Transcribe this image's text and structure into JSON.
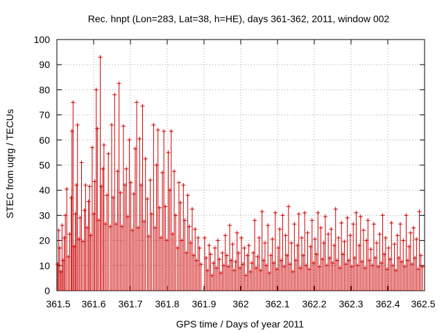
{
  "chart_data": {
    "type": "scatter",
    "title": "Rec. hnpt (Lon=283, Lat=38, h=HE), days 361-362, 2011, window 002",
    "xlabel": "GPS time / Days of year 2011",
    "ylabel": "STEC from uqrg / TECUs",
    "xlim": [
      361.5,
      362.5
    ],
    "ylim": [
      0,
      100
    ],
    "xticks": [
      361.5,
      361.6,
      361.7,
      361.8,
      361.9,
      362,
      362.1,
      362.2,
      362.3,
      362.4,
      362.5
    ],
    "xtick_labels": [
      "361.5",
      "361.6",
      "361.7",
      "361.8",
      "361.9",
      "362",
      "362.1",
      "362.2",
      "362.3",
      "362.4",
      "362.5"
    ],
    "yticks": [
      0,
      10,
      20,
      30,
      40,
      50,
      60,
      70,
      80,
      90,
      100
    ],
    "ytick_labels": [
      "0",
      "10",
      "20",
      "30",
      "40",
      "50",
      "60",
      "70",
      "80",
      "90",
      "100"
    ],
    "grid": true,
    "series": [
      {
        "name": "STEC",
        "color": "#cc0000",
        "marker": "impulse-plus",
        "points": [
          {
            "x": 361.502,
            "y": 10.5
          },
          {
            "x": 361.505,
            "y": 24.0
          },
          {
            "x": 361.508,
            "y": 17.0
          },
          {
            "x": 361.511,
            "y": 7.5
          },
          {
            "x": 361.514,
            "y": 26.0
          },
          {
            "x": 361.517,
            "y": 12.0
          },
          {
            "x": 361.52,
            "y": 21.0
          },
          {
            "x": 361.523,
            "y": 30.0
          },
          {
            "x": 361.527,
            "y": 40.5
          },
          {
            "x": 361.531,
            "y": 13.5
          },
          {
            "x": 361.535,
            "y": 22.5
          },
          {
            "x": 361.539,
            "y": 37.0
          },
          {
            "x": 361.541,
            "y": 63.5
          },
          {
            "x": 361.544,
            "y": 75.0
          },
          {
            "x": 361.547,
            "y": 17.5
          },
          {
            "x": 361.55,
            "y": 30.5
          },
          {
            "x": 361.553,
            "y": 42.0
          },
          {
            "x": 361.556,
            "y": 66.0
          },
          {
            "x": 361.56,
            "y": 20.5
          },
          {
            "x": 361.563,
            "y": 29.0
          },
          {
            "x": 361.567,
            "y": 51.0
          },
          {
            "x": 361.571,
            "y": 19.5
          },
          {
            "x": 361.575,
            "y": 32.0
          },
          {
            "x": 361.578,
            "y": 42.0
          },
          {
            "x": 361.582,
            "y": 25.0
          },
          {
            "x": 361.586,
            "y": 35.5
          },
          {
            "x": 361.589,
            "y": 41.5
          },
          {
            "x": 361.592,
            "y": 22.0
          },
          {
            "x": 361.596,
            "y": 57.0
          },
          {
            "x": 361.6,
            "y": 30.5
          },
          {
            "x": 361.603,
            "y": 43.5
          },
          {
            "x": 361.607,
            "y": 80.0
          },
          {
            "x": 361.61,
            "y": 64.5
          },
          {
            "x": 361.614,
            "y": 28.0
          },
          {
            "x": 361.618,
            "y": 93.0
          },
          {
            "x": 361.621,
            "y": 41.5
          },
          {
            "x": 361.625,
            "y": 48.5
          },
          {
            "x": 361.628,
            "y": 58.0
          },
          {
            "x": 361.632,
            "y": 26.5
          },
          {
            "x": 361.636,
            "y": 38.0
          },
          {
            "x": 361.64,
            "y": 54.5
          },
          {
            "x": 361.645,
            "y": 25.5
          },
          {
            "x": 361.649,
            "y": 66.0
          },
          {
            "x": 361.653,
            "y": 37.0
          },
          {
            "x": 361.657,
            "y": 78.0
          },
          {
            "x": 361.661,
            "y": 26.5
          },
          {
            "x": 361.665,
            "y": 47.5
          },
          {
            "x": 361.669,
            "y": 82.5
          },
          {
            "x": 361.673,
            "y": 39.0
          },
          {
            "x": 361.677,
            "y": 25.5
          },
          {
            "x": 361.681,
            "y": 65.5
          },
          {
            "x": 361.685,
            "y": 42.0
          },
          {
            "x": 361.689,
            "y": 48.5
          },
          {
            "x": 361.693,
            "y": 29.5
          },
          {
            "x": 361.697,
            "y": 60.0
          },
          {
            "x": 361.701,
            "y": 43.0
          },
          {
            "x": 361.705,
            "y": 24.0
          },
          {
            "x": 361.709,
            "y": 38.5
          },
          {
            "x": 361.713,
            "y": 56.5
          },
          {
            "x": 361.717,
            "y": 75.0
          },
          {
            "x": 361.721,
            "y": 25.0
          },
          {
            "x": 361.725,
            "y": 60.5
          },
          {
            "x": 361.729,
            "y": 42.0
          },
          {
            "x": 361.733,
            "y": 73.5
          },
          {
            "x": 361.737,
            "y": 27.5
          },
          {
            "x": 361.741,
            "y": 52.5
          },
          {
            "x": 361.746,
            "y": 36.5
          },
          {
            "x": 361.75,
            "y": 21.5
          },
          {
            "x": 361.754,
            "y": 44.0
          },
          {
            "x": 361.758,
            "y": 30.5
          },
          {
            "x": 361.763,
            "y": 66.0
          },
          {
            "x": 361.767,
            "y": 25.0
          },
          {
            "x": 361.771,
            "y": 50.0
          },
          {
            "x": 361.775,
            "y": 64.0
          },
          {
            "x": 361.779,
            "y": 33.0
          },
          {
            "x": 361.783,
            "y": 21.0
          },
          {
            "x": 361.787,
            "y": 47.0
          },
          {
            "x": 361.791,
            "y": 63.5
          },
          {
            "x": 361.795,
            "y": 33.5
          },
          {
            "x": 361.799,
            "y": 20.0
          },
          {
            "x": 361.803,
            "y": 55.0
          },
          {
            "x": 361.807,
            "y": 40.0
          },
          {
            "x": 361.811,
            "y": 63.5
          },
          {
            "x": 361.815,
            "y": 22.5
          },
          {
            "x": 361.819,
            "y": 47.5
          },
          {
            "x": 361.823,
            "y": 30.0
          },
          {
            "x": 361.828,
            "y": 17.0
          },
          {
            "x": 361.832,
            "y": 43.0
          },
          {
            "x": 361.836,
            "y": 35.0
          },
          {
            "x": 361.84,
            "y": 20.0
          },
          {
            "x": 361.844,
            "y": 42.0
          },
          {
            "x": 361.848,
            "y": 28.0
          },
          {
            "x": 361.852,
            "y": 15.0
          },
          {
            "x": 361.856,
            "y": 38.0
          },
          {
            "x": 361.86,
            "y": 25.5
          },
          {
            "x": 361.864,
            "y": 19.0
          },
          {
            "x": 361.868,
            "y": 32.5
          },
          {
            "x": 361.872,
            "y": 14.0
          },
          {
            "x": 361.876,
            "y": 24.5
          },
          {
            "x": 361.88,
            "y": 12.0
          },
          {
            "x": 361.884,
            "y": 21.0
          },
          {
            "x": 361.888,
            "y": 17.0
          },
          {
            "x": 361.892,
            "y": 10.5
          },
          {
            "x": 361.902,
            "y": 21.0
          },
          {
            "x": 361.906,
            "y": 13.0
          },
          {
            "x": 361.91,
            "y": 8.0
          },
          {
            "x": 361.914,
            "y": 18.0
          },
          {
            "x": 361.918,
            "y": 14.5
          },
          {
            "x": 361.922,
            "y": 6.0
          },
          {
            "x": 361.926,
            "y": 11.0
          },
          {
            "x": 361.93,
            "y": 17.0
          },
          {
            "x": 361.934,
            "y": 9.0
          },
          {
            "x": 361.938,
            "y": 20.0
          },
          {
            "x": 361.942,
            "y": 12.5
          },
          {
            "x": 361.946,
            "y": 7.0
          },
          {
            "x": 361.95,
            "y": 15.0
          },
          {
            "x": 361.954,
            "y": 10.0
          },
          {
            "x": 361.958,
            "y": 22.0
          },
          {
            "x": 361.962,
            "y": 14.0
          },
          {
            "x": 361.966,
            "y": 9.5
          },
          {
            "x": 361.97,
            "y": 26.0
          },
          {
            "x": 361.974,
            "y": 12.0
          },
          {
            "x": 361.978,
            "y": 18.5
          },
          {
            "x": 361.982,
            "y": 8.0
          },
          {
            "x": 361.986,
            "y": 11.5
          },
          {
            "x": 361.99,
            "y": 23.0
          },
          {
            "x": 361.994,
            "y": 15.0
          },
          {
            "x": 361.998,
            "y": 9.0
          },
          {
            "x": 362.002,
            "y": 21.0
          },
          {
            "x": 362.006,
            "y": 10.5
          },
          {
            "x": 362.01,
            "y": 17.0
          },
          {
            "x": 362.014,
            "y": 6.0
          },
          {
            "x": 362.018,
            "y": 14.0
          },
          {
            "x": 362.022,
            "y": 18.0
          },
          {
            "x": 362.026,
            "y": 7.5
          },
          {
            "x": 362.03,
            "y": 11.0
          },
          {
            "x": 362.034,
            "y": 15.0
          },
          {
            "x": 362.038,
            "y": 28.0
          },
          {
            "x": 362.042,
            "y": 9.0
          },
          {
            "x": 362.046,
            "y": 13.5
          },
          {
            "x": 362.05,
            "y": 21.0
          },
          {
            "x": 362.054,
            "y": 8.0
          },
          {
            "x": 362.058,
            "y": 31.5
          },
          {
            "x": 362.062,
            "y": 12.0
          },
          {
            "x": 362.066,
            "y": 19.0
          },
          {
            "x": 362.07,
            "y": 10.0
          },
          {
            "x": 362.074,
            "y": 26.0
          },
          {
            "x": 362.078,
            "y": 7.0
          },
          {
            "x": 362.082,
            "y": 14.0
          },
          {
            "x": 362.086,
            "y": 20.5
          },
          {
            "x": 362.09,
            "y": 11.0
          },
          {
            "x": 362.094,
            "y": 31.0
          },
          {
            "x": 362.098,
            "y": 8.5
          },
          {
            "x": 362.102,
            "y": 17.0
          },
          {
            "x": 362.106,
            "y": 24.5
          },
          {
            "x": 362.11,
            "y": 12.0
          },
          {
            "x": 362.114,
            "y": 30.0
          },
          {
            "x": 362.118,
            "y": 9.5
          },
          {
            "x": 362.122,
            "y": 22.0
          },
          {
            "x": 362.126,
            "y": 14.0
          },
          {
            "x": 362.13,
            "y": 33.5
          },
          {
            "x": 362.134,
            "y": 10.5
          },
          {
            "x": 362.138,
            "y": 19.0
          },
          {
            "x": 362.142,
            "y": 7.5
          },
          {
            "x": 362.146,
            "y": 26.5
          },
          {
            "x": 362.15,
            "y": 12.0
          },
          {
            "x": 362.154,
            "y": 18.0
          },
          {
            "x": 362.158,
            "y": 30.5
          },
          {
            "x": 362.162,
            "y": 9.0
          },
          {
            "x": 362.166,
            "y": 21.0
          },
          {
            "x": 362.17,
            "y": 14.0
          },
          {
            "x": 362.174,
            "y": 31.0
          },
          {
            "x": 362.178,
            "y": 10.0
          },
          {
            "x": 362.182,
            "y": 23.0
          },
          {
            "x": 362.186,
            "y": 8.5
          },
          {
            "x": 362.19,
            "y": 17.5
          },
          {
            "x": 362.194,
            "y": 28.0
          },
          {
            "x": 362.198,
            "y": 11.0
          },
          {
            "x": 362.202,
            "y": 20.5
          },
          {
            "x": 362.206,
            "y": 14.5
          },
          {
            "x": 362.21,
            "y": 31.0
          },
          {
            "x": 362.214,
            "y": 9.5
          },
          {
            "x": 362.218,
            "y": 25.0
          },
          {
            "x": 362.222,
            "y": 12.5
          },
          {
            "x": 362.226,
            "y": 19.0
          },
          {
            "x": 362.23,
            "y": 29.5
          },
          {
            "x": 362.234,
            "y": 10.0
          },
          {
            "x": 362.238,
            "y": 22.5
          },
          {
            "x": 362.242,
            "y": 13.0
          },
          {
            "x": 362.246,
            "y": 24.5
          },
          {
            "x": 362.25,
            "y": 11.0
          },
          {
            "x": 362.254,
            "y": 18.0
          },
          {
            "x": 362.258,
            "y": 32.5
          },
          {
            "x": 362.262,
            "y": 12.0
          },
          {
            "x": 362.266,
            "y": 21.0
          },
          {
            "x": 362.27,
            "y": 9.0
          },
          {
            "x": 362.274,
            "y": 27.0
          },
          {
            "x": 362.278,
            "y": 14.5
          },
          {
            "x": 362.282,
            "y": 19.5
          },
          {
            "x": 362.286,
            "y": 10.5
          },
          {
            "x": 362.29,
            "y": 29.0
          },
          {
            "x": 362.294,
            "y": 12.0
          },
          {
            "x": 362.298,
            "y": 22.0
          },
          {
            "x": 362.302,
            "y": 9.5
          },
          {
            "x": 362.306,
            "y": 26.5
          },
          {
            "x": 362.31,
            "y": 13.0
          },
          {
            "x": 362.314,
            "y": 31.0
          },
          {
            "x": 362.318,
            "y": 10.0
          },
          {
            "x": 362.322,
            "y": 18.0
          },
          {
            "x": 362.326,
            "y": 29.5
          },
          {
            "x": 362.33,
            "y": 11.5
          },
          {
            "x": 362.334,
            "y": 24.0
          },
          {
            "x": 362.338,
            "y": 9.0
          },
          {
            "x": 362.342,
            "y": 20.0
          },
          {
            "x": 362.346,
            "y": 28.0
          },
          {
            "x": 362.35,
            "y": 12.0
          },
          {
            "x": 362.354,
            "y": 16.5
          },
          {
            "x": 362.358,
            "y": 10.0
          },
          {
            "x": 362.362,
            "y": 26.5
          },
          {
            "x": 362.366,
            "y": 13.0
          },
          {
            "x": 362.37,
            "y": 19.0
          },
          {
            "x": 362.374,
            "y": 9.5
          },
          {
            "x": 362.378,
            "y": 22.5
          },
          {
            "x": 362.382,
            "y": 11.0
          },
          {
            "x": 362.386,
            "y": 30.0
          },
          {
            "x": 362.39,
            "y": 14.5
          },
          {
            "x": 362.394,
            "y": 21.0
          },
          {
            "x": 362.398,
            "y": 8.5
          },
          {
            "x": 362.402,
            "y": 17.0
          },
          {
            "x": 362.406,
            "y": 12.5
          },
          {
            "x": 362.41,
            "y": 27.0
          },
          {
            "x": 362.414,
            "y": 10.0
          },
          {
            "x": 362.418,
            "y": 18.5
          },
          {
            "x": 362.422,
            "y": 8.0
          },
          {
            "x": 362.426,
            "y": 22.0
          },
          {
            "x": 362.43,
            "y": 13.0
          },
          {
            "x": 362.434,
            "y": 26.5
          },
          {
            "x": 362.438,
            "y": 11.5
          },
          {
            "x": 362.442,
            "y": 20.0
          },
          {
            "x": 362.446,
            "y": 9.5
          },
          {
            "x": 362.45,
            "y": 30.0
          },
          {
            "x": 362.454,
            "y": 12.0
          },
          {
            "x": 362.458,
            "y": 17.5
          },
          {
            "x": 362.462,
            "y": 23.0
          },
          {
            "x": 362.466,
            "y": 10.5
          },
          {
            "x": 362.47,
            "y": 25.0
          },
          {
            "x": 362.474,
            "y": 13.0
          },
          {
            "x": 362.478,
            "y": 20.5
          },
          {
            "x": 362.482,
            "y": 8.5
          },
          {
            "x": 362.486,
            "y": 31.5
          },
          {
            "x": 362.49,
            "y": 14.0
          },
          {
            "x": 362.494,
            "y": 9.5
          }
        ]
      }
    ]
  }
}
